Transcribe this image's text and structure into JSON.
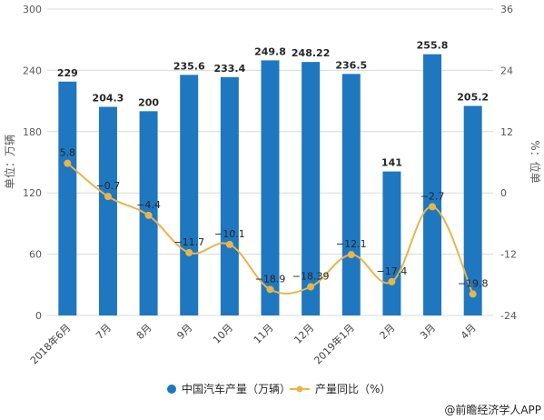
{
  "chart_data": {
    "type": "bar+line",
    "categories": [
      "2018年6月",
      "7月",
      "8月",
      "9月",
      "10月",
      "11月",
      "12月",
      "2019年1月",
      "2月",
      "3月",
      "4月"
    ],
    "series": [
      {
        "name": "中国汽车产量（万辆）",
        "type": "bar",
        "axis": "left",
        "color": "#1F77C0",
        "values": [
          229,
          204.3,
          200,
          235.6,
          233.4,
          249.8,
          248.22,
          236.5,
          141,
          255.8,
          205.2
        ],
        "labels": [
          "229",
          "204.3",
          "200",
          "235.6",
          "233.4",
          "249.8",
          "248.22",
          "236.5",
          "141",
          "255.8",
          "205.2"
        ]
      },
      {
        "name": "产量同比（%）",
        "type": "line",
        "axis": "right",
        "color": "#E8B54A",
        "values": [
          5.8,
          -0.7,
          -4.4,
          -11.7,
          -10.1,
          -18.9,
          -18.39,
          -12.1,
          -17.4,
          -2.7,
          -19.8
        ],
        "labels": [
          "5.8",
          "−0.7",
          "−4.4",
          "−11.7",
          "−10.1",
          "−18.9",
          "−18.39",
          "−12.1",
          "−17.4",
          "−2.7",
          "−19.8"
        ]
      }
    ],
    "ylabel": "单位：万辆",
    "ylabel_right": "%：位单",
    "ylim": [
      0,
      300
    ],
    "yticks": [
      "0",
      "60",
      "120",
      "180",
      "240",
      "300"
    ],
    "ylim_right": [
      -24,
      36
    ],
    "yticks_right": [
      "-24",
      "-12",
      "0",
      "12",
      "24",
      "36"
    ],
    "grid": true,
    "legend_position": "bottom"
  },
  "source": "@前瞻经济学人APP"
}
